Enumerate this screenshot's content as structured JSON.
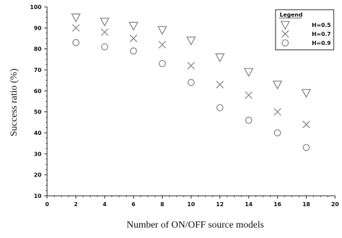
{
  "chart_data": {
    "type": "scatter",
    "xlabel": "Number of ON/OFF source models",
    "ylabel": "Success ratio (%)",
    "xlim": [
      0,
      20
    ],
    "ylim": [
      10,
      100
    ],
    "x_ticks": [
      "0",
      "2",
      "4",
      "6",
      "8",
      "10",
      "12",
      "14",
      "16",
      "18",
      "20"
    ],
    "y_ticks": [
      "10",
      "20",
      "30",
      "40",
      "50",
      "60",
      "70",
      "80",
      "90",
      "100"
    ],
    "grid": false,
    "legend": {
      "title": "Legend",
      "position": "top-right"
    },
    "series": [
      {
        "name": "H=0.5",
        "marker": "triangle-down",
        "x": [
          2,
          4,
          6,
          8,
          10,
          12,
          14,
          16,
          18
        ],
        "y": [
          95,
          93,
          91,
          89,
          84,
          76,
          69,
          63,
          59
        ]
      },
      {
        "name": "H=0.7",
        "marker": "x",
        "x": [
          2,
          4,
          6,
          8,
          10,
          12,
          14,
          16,
          18
        ],
        "y": [
          90,
          88,
          85,
          82,
          72,
          63,
          58,
          50,
          44
        ]
      },
      {
        "name": "H=0.9",
        "marker": "circle",
        "x": [
          2,
          4,
          6,
          8,
          10,
          12,
          14,
          16,
          18
        ],
        "y": [
          83,
          81,
          79,
          73,
          64,
          52,
          46,
          40,
          33
        ]
      }
    ]
  }
}
